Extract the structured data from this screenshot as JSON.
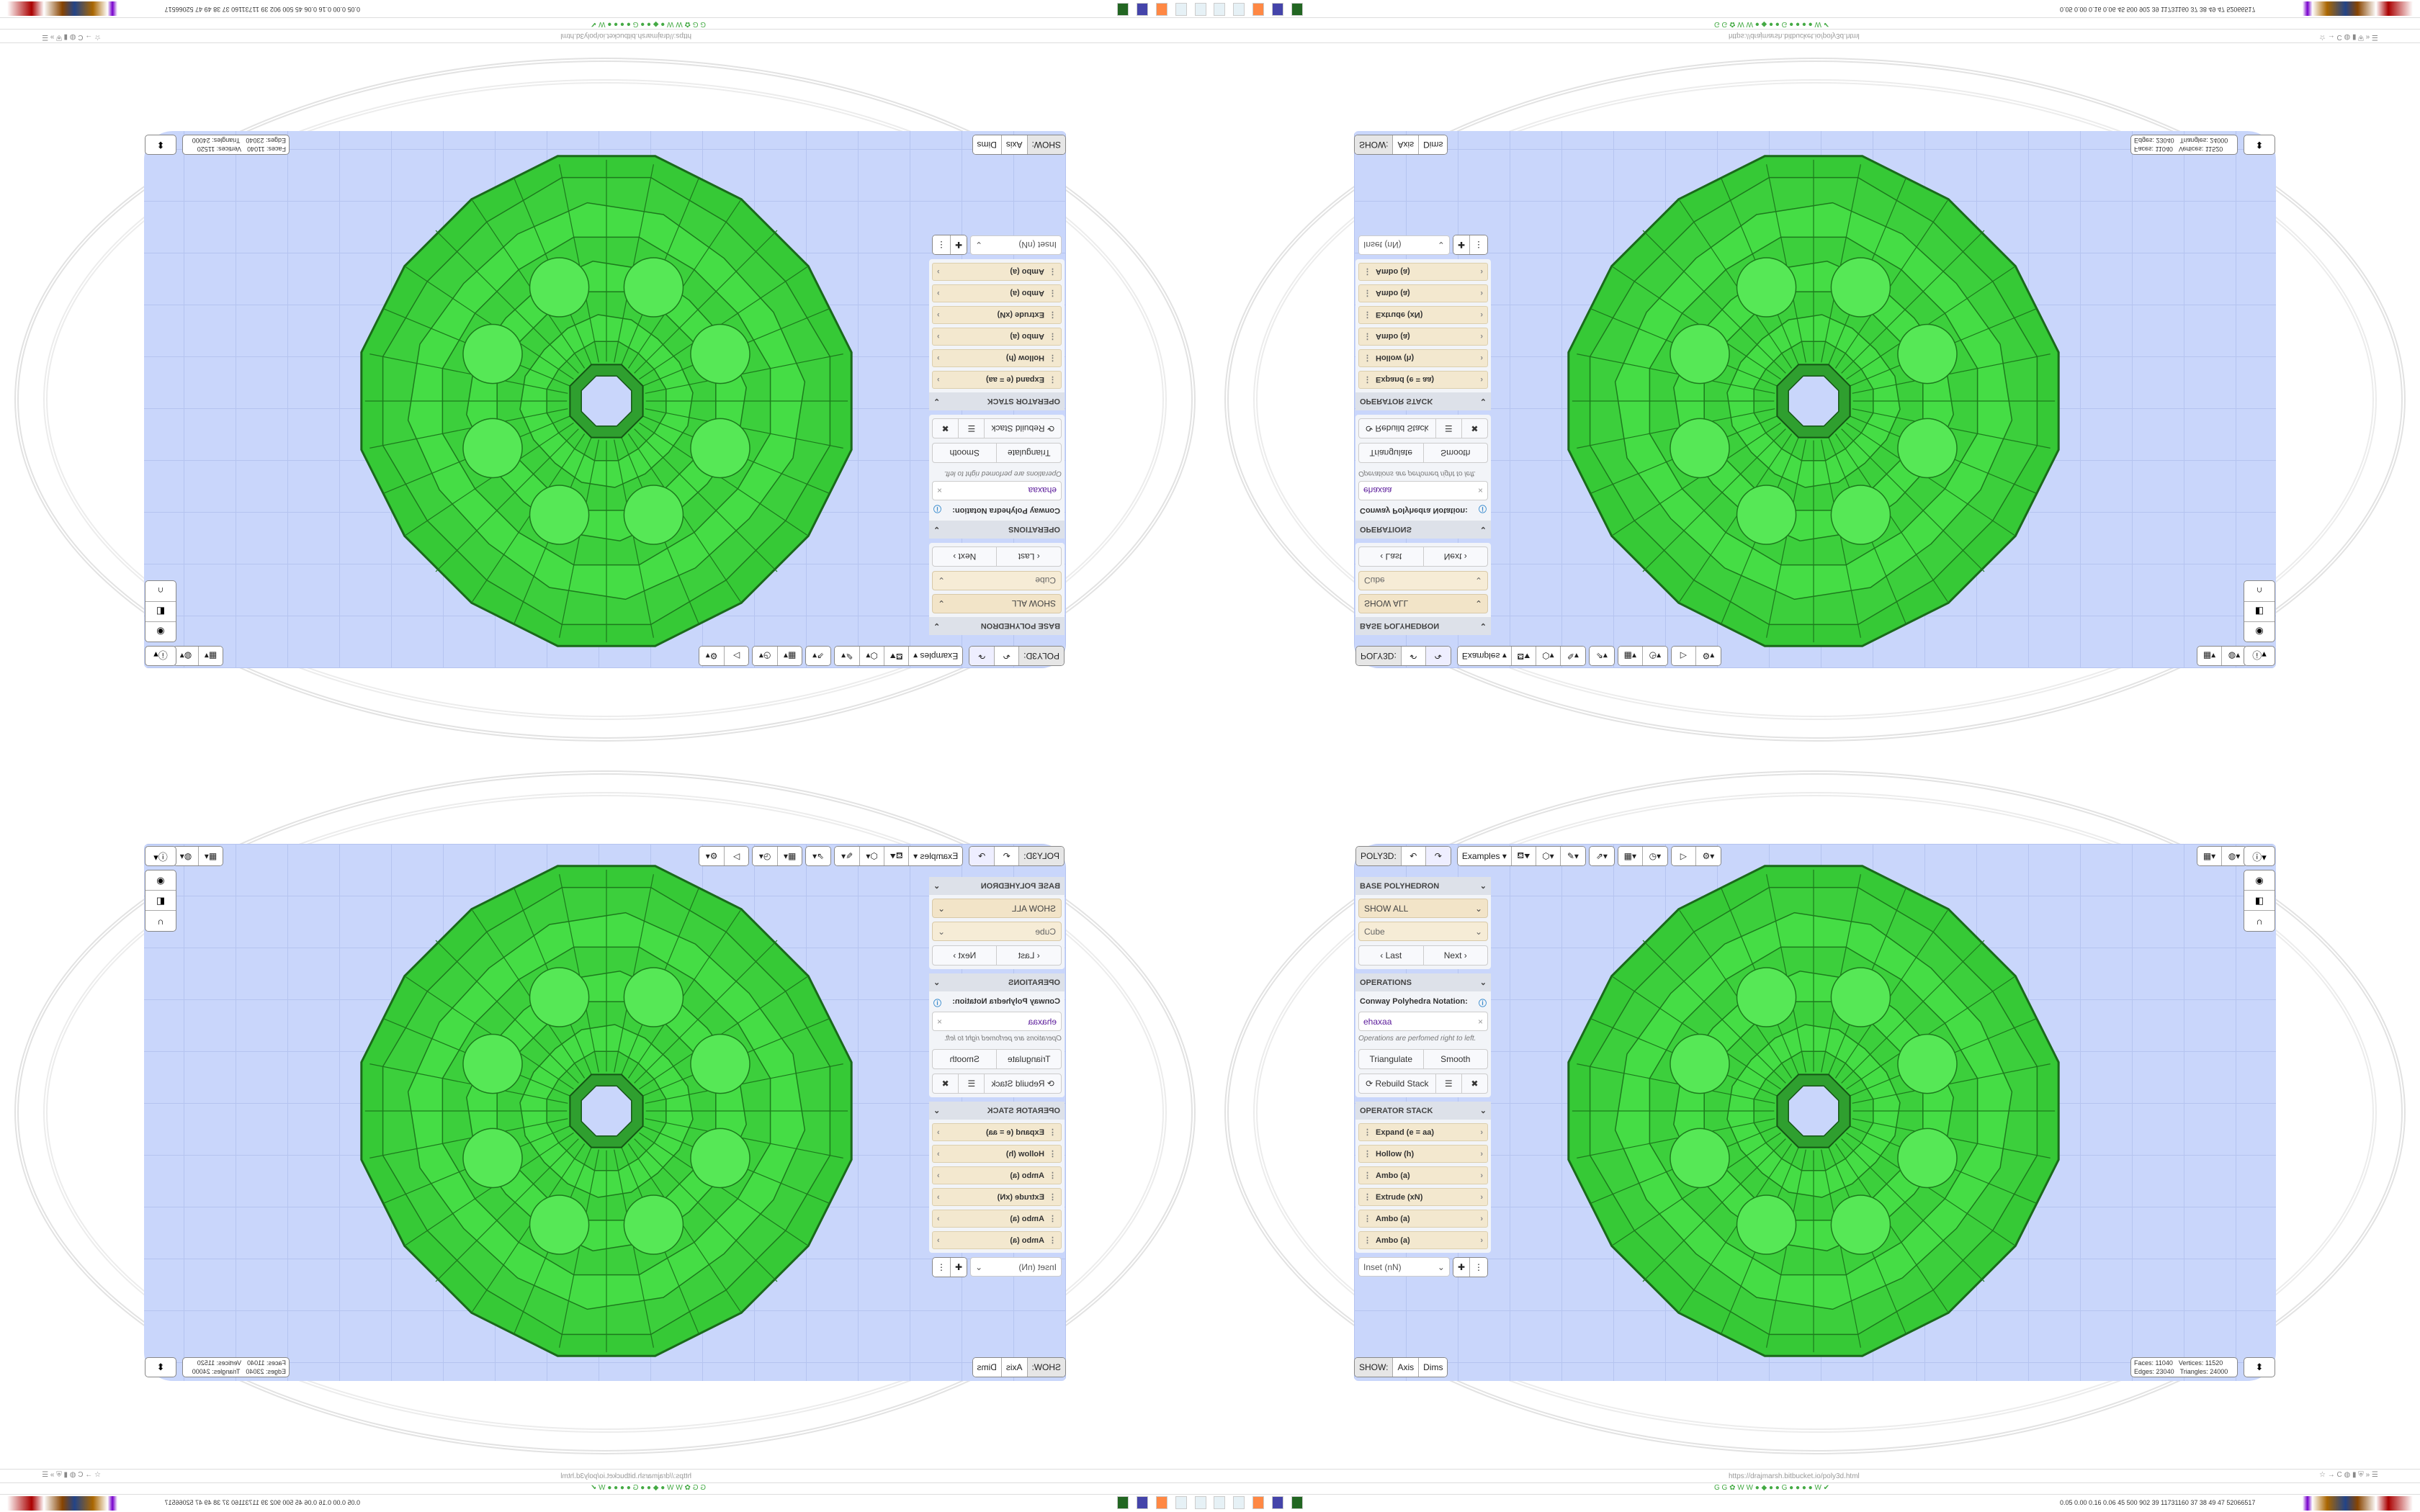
{
  "app": {
    "title": "POLY3D:",
    "url": "https://drajmarsh.bitbucket.io/poly3d.html"
  },
  "toolbar": {
    "examples_label": "Examples",
    "icons": [
      "undo-icon",
      "redo-icon",
      "paint-bucket-icon",
      "cube-play-icon",
      "edit-icon",
      "export-icon",
      "calendar-icon",
      "clock-icon",
      "play-icon",
      "gear-icon"
    ]
  },
  "right_toolbar": {
    "icons": [
      "calendar-clock-icon",
      "globe-icon",
      "info-icon",
      "eye-icon",
      "toggle-icon",
      "magnet-icon"
    ]
  },
  "panel": {
    "base": {
      "header": "BASE POLYHEDRON",
      "filter": "SHOW ALL",
      "shape": "Cube",
      "last": "Last",
      "next": "Next"
    },
    "operations": {
      "header": "OPERATIONS",
      "notation_label": "Conway Polyhedra Notation:",
      "notation_value": "ehaxaa",
      "note": "Operations are perfomed right to left.",
      "triangulate": "Triangulate",
      "smooth": "Smooth",
      "rebuild": "Rebuild Stack"
    },
    "stack": {
      "header": "OPERATOR STACK",
      "items": [
        "Expand (e = aa)",
        "Hollow (h)",
        "Ambo (a)",
        "Extrude (xN)",
        "Ambo (a)",
        "Ambo (a)"
      ],
      "add_select": "Inset (nN)"
    }
  },
  "show": {
    "label": "SHOW:",
    "axis": "Axis",
    "dims": "Dims"
  },
  "stats": {
    "faces_label": "Faces:",
    "faces": "11040",
    "vertices_label": "Vertices:",
    "vertices": "11520",
    "edges_label": "Edges:",
    "edges": "23040",
    "triangles_label": "Triangles:",
    "triangles": "24000"
  },
  "taskbar": {
    "readout": "0.05 0.00 0.16 0.06 45 500 902 39 11731160 37 38 49 47 52066517"
  },
  "colors": {
    "canvas": "#c9d6fb",
    "polyhedron": "#3fd43f",
    "panel_item": "#f3e8cf"
  }
}
